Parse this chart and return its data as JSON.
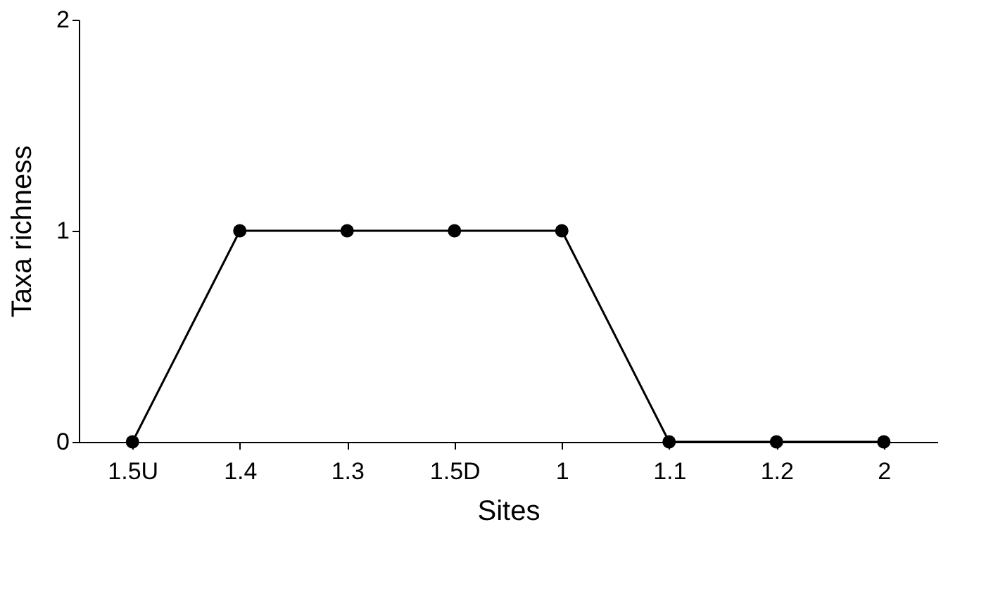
{
  "chart_data": {
    "type": "line",
    "xlabel": "Sites",
    "ylabel": "Taxa richness",
    "categories": [
      "1.5U",
      "1.4",
      "1.3",
      "1.5D",
      "1",
      "1.1",
      "1.2",
      "2"
    ],
    "values": [
      0,
      1,
      1,
      1,
      1,
      0,
      0,
      0
    ],
    "color": "#000000",
    "marker": "circle",
    "line_style": "solid",
    "ylim": [
      0,
      2
    ],
    "yticks": [
      0,
      1,
      2
    ],
    "grid": false
  }
}
